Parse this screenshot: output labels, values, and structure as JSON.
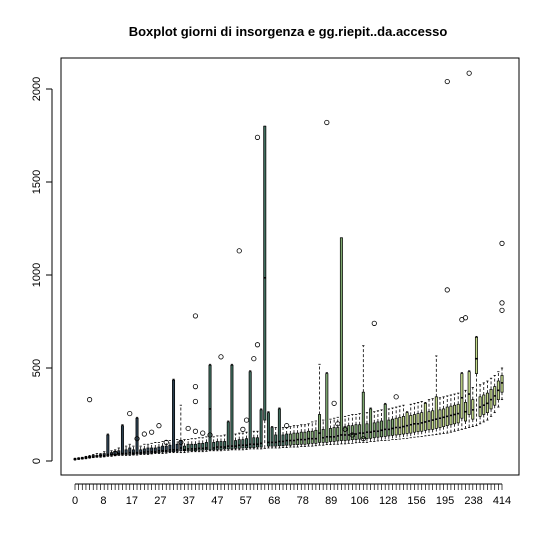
{
  "chart_data": {
    "type": "box",
    "title": "Boxplot giorni di insorgenza e gg.riepit..da.accesso",
    "xlabel": "",
    "ylabel": "",
    "ylim": [
      0,
      2100
    ],
    "y_ticks": [
      0,
      500,
      1000,
      1500,
      2000
    ],
    "x_tick_labels": [
      "0",
      "8",
      "17",
      "27",
      "37",
      "47",
      "57",
      "68",
      "78",
      "89",
      "106",
      "128",
      "156",
      "195",
      "238",
      "414"
    ],
    "grid": false,
    "box_colors": [
      "#2a3f4f",
      "#3e6b5c",
      "#7ea870",
      "#c2d98a"
    ],
    "boxes": [
      {
        "pos": 1,
        "low": 5,
        "q1": 8,
        "med": 10,
        "q3": 12,
        "high": 15
      },
      {
        "pos": 2,
        "low": 8,
        "q1": 10,
        "med": 12,
        "q3": 15,
        "high": 18
      },
      {
        "pos": 3,
        "low": 10,
        "q1": 12,
        "med": 15,
        "q3": 18,
        "high": 20
      },
      {
        "pos": 4,
        "low": 12,
        "q1": 15,
        "med": 18,
        "q3": 22,
        "high": 25
      },
      {
        "pos": 5,
        "low": 15,
        "q1": 18,
        "med": 20,
        "q3": 25,
        "high": 30,
        "out": [
          330
        ]
      },
      {
        "pos": 6,
        "low": 18,
        "q1": 20,
        "med": 22,
        "q3": 30,
        "high": 35
      },
      {
        "pos": 7,
        "low": 20,
        "q1": 22,
        "med": 25,
        "q3": 30,
        "high": 40
      },
      {
        "pos": 8,
        "low": 20,
        "q1": 25,
        "med": 28,
        "q3": 35,
        "high": 40
      },
      {
        "pos": 9,
        "low": 22,
        "q1": 25,
        "med": 30,
        "q3": 40,
        "high": 50
      },
      {
        "pos": 10,
        "low": 25,
        "q1": 28,
        "med": 35,
        "q3": 140,
        "high": 145
      },
      {
        "pos": 11,
        "low": 25,
        "q1": 30,
        "med": 35,
        "q3": 45,
        "high": 55
      },
      {
        "pos": 12,
        "low": 28,
        "q1": 30,
        "med": 35,
        "q3": 50,
        "high": 60,
        "out": [
          42
        ]
      },
      {
        "pos": 13,
        "low": 30,
        "q1": 32,
        "med": 40,
        "q3": 55,
        "high": 70
      },
      {
        "pos": 14,
        "low": 30,
        "q1": 35,
        "med": 40,
        "q3": 190,
        "high": 195
      },
      {
        "pos": 15,
        "low": 30,
        "q1": 35,
        "med": 40,
        "q3": 60,
        "high": 80
      },
      {
        "pos": 16,
        "low": 30,
        "q1": 35,
        "med": 45,
        "q3": 70,
        "high": 90,
        "out": [
          255
        ]
      },
      {
        "pos": 17,
        "low": 32,
        "q1": 35,
        "med": 42,
        "q3": 60,
        "high": 80
      },
      {
        "pos": 18,
        "low": 32,
        "q1": 38,
        "med": 45,
        "q3": 230,
        "high": 235,
        "out": [
          120
        ]
      },
      {
        "pos": 19,
        "low": 35,
        "q1": 38,
        "med": 45,
        "q3": 60,
        "high": 80
      },
      {
        "pos": 20,
        "low": 35,
        "q1": 40,
        "med": 48,
        "q3": 65,
        "high": 90,
        "out": [
          145
        ]
      },
      {
        "pos": 21,
        "low": 35,
        "q1": 40,
        "med": 50,
        "q3": 70,
        "high": 90
      },
      {
        "pos": 22,
        "low": 38,
        "q1": 42,
        "med": 50,
        "q3": 70,
        "high": 95,
        "out": [
          155
        ]
      },
      {
        "pos": 23,
        "low": 40,
        "q1": 45,
        "med": 50,
        "q3": 70,
        "high": 100
      },
      {
        "pos": 24,
        "low": 40,
        "q1": 45,
        "med": 55,
        "q3": 75,
        "high": 100,
        "out": [
          190
        ]
      },
      {
        "pos": 25,
        "low": 40,
        "q1": 48,
        "med": 55,
        "q3": 80,
        "high": 105
      },
      {
        "pos": 26,
        "low": 42,
        "q1": 48,
        "med": 55,
        "q3": 80,
        "high": 110,
        "out": [
          100
        ]
      },
      {
        "pos": 27,
        "low": 45,
        "q1": 50,
        "med": 60,
        "q3": 85,
        "high": 110
      },
      {
        "pos": 28,
        "low": 45,
        "q1": 50,
        "med": 60,
        "q3": 435,
        "high": 440
      },
      {
        "pos": 29,
        "low": 45,
        "q1": 52,
        "med": 60,
        "q3": 90,
        "high": 115
      },
      {
        "pos": 30,
        "low": 45,
        "q1": 55,
        "med": 70,
        "q3": 110,
        "high": 300,
        "out": [
          100
        ]
      },
      {
        "pos": 31,
        "low": 45,
        "q1": 55,
        "med": 60,
        "q3": 80,
        "high": 115
      },
      {
        "pos": 32,
        "low": 48,
        "q1": 55,
        "med": 65,
        "q3": 90,
        "high": 115,
        "out": [
          175
        ]
      },
      {
        "pos": 33,
        "low": 50,
        "q1": 55,
        "med": 65,
        "q3": 90,
        "high": 120
      },
      {
        "pos": 34,
        "low": 50,
        "q1": 55,
        "med": 65,
        "q3": 90,
        "high": 120,
        "out": [
          780,
          400,
          320,
          160
        ]
      },
      {
        "pos": 35,
        "low": 50,
        "q1": 58,
        "med": 68,
        "q3": 95,
        "high": 125
      },
      {
        "pos": 36,
        "low": 50,
        "q1": 58,
        "med": 68,
        "q3": 95,
        "high": 125,
        "out": [
          150
        ]
      },
      {
        "pos": 37,
        "low": 52,
        "q1": 60,
        "med": 70,
        "q3": 100,
        "high": 130
      },
      {
        "pos": 38,
        "low": 55,
        "q1": 60,
        "med": 280,
        "q3": 515,
        "high": 520,
        "out": [
          140
        ]
      },
      {
        "pos": 39,
        "low": 55,
        "q1": 60,
        "med": 70,
        "q3": 100,
        "high": 130
      },
      {
        "pos": 40,
        "low": 55,
        "q1": 62,
        "med": 75,
        "q3": 105,
        "high": 135
      },
      {
        "pos": 41,
        "low": 55,
        "q1": 62,
        "med": 75,
        "q3": 105,
        "high": 135,
        "out": [
          560
        ]
      },
      {
        "pos": 42,
        "low": 58,
        "q1": 65,
        "med": 75,
        "q3": 105,
        "high": 140
      },
      {
        "pos": 43,
        "low": 58,
        "q1": 65,
        "med": 80,
        "q3": 210,
        "high": 215
      },
      {
        "pos": 44,
        "low": 60,
        "q1": 65,
        "med": 80,
        "q3": 515,
        "high": 520
      },
      {
        "pos": 45,
        "low": 60,
        "q1": 68,
        "med": 80,
        "q3": 110,
        "high": 145
      },
      {
        "pos": 46,
        "low": 60,
        "q1": 68,
        "med": 85,
        "q3": 115,
        "high": 150,
        "out": [
          1130
        ]
      },
      {
        "pos": 47,
        "low": 60,
        "q1": 70,
        "med": 85,
        "q3": 115,
        "high": 150,
        "out": [
          170
        ]
      },
      {
        "pos": 48,
        "low": 62,
        "q1": 70,
        "med": 85,
        "q3": 120,
        "high": 155,
        "out": [
          220
        ]
      },
      {
        "pos": 49,
        "low": 65,
        "q1": 72,
        "med": 90,
        "q3": 480,
        "high": 485
      },
      {
        "pos": 50,
        "low": 65,
        "q1": 72,
        "med": 90,
        "q3": 125,
        "high": 160,
        "out": [
          550
        ]
      },
      {
        "pos": 51,
        "low": 65,
        "q1": 75,
        "med": 90,
        "q3": 125,
        "high": 160,
        "out": [
          625,
          1740
        ]
      },
      {
        "pos": 52,
        "low": 65,
        "q1": 75,
        "med": 95,
        "q3": 275,
        "high": 280
      },
      {
        "pos": 53,
        "low": 68,
        "q1": 220,
        "med": 985,
        "q3": 1800,
        "high": 1800
      },
      {
        "pos": 54,
        "low": 70,
        "q1": 80,
        "med": 100,
        "q3": 260,
        "high": 265
      },
      {
        "pos": 55,
        "low": 70,
        "q1": 80,
        "med": 100,
        "q3": 180,
        "high": 185
      },
      {
        "pos": 56,
        "low": 70,
        "q1": 80,
        "med": 100,
        "q3": 140,
        "high": 180
      },
      {
        "pos": 57,
        "low": 70,
        "q1": 82,
        "med": 105,
        "q3": 280,
        "high": 285
      },
      {
        "pos": 58,
        "low": 72,
        "q1": 82,
        "med": 105,
        "q3": 140,
        "high": 180
      },
      {
        "pos": 59,
        "low": 72,
        "q1": 85,
        "med": 110,
        "q3": 145,
        "high": 180,
        "out": [
          190
        ]
      },
      {
        "pos": 60,
        "low": 75,
        "q1": 85,
        "med": 110,
        "q3": 145,
        "high": 185
      },
      {
        "pos": 61,
        "low": 75,
        "q1": 88,
        "med": 110,
        "q3": 150,
        "high": 190
      },
      {
        "pos": 62,
        "low": 75,
        "q1": 88,
        "med": 115,
        "q3": 150,
        "high": 190
      },
      {
        "pos": 63,
        "low": 78,
        "q1": 90,
        "med": 115,
        "q3": 155,
        "high": 195
      },
      {
        "pos": 64,
        "low": 78,
        "q1": 90,
        "med": 115,
        "q3": 155,
        "high": 195
      },
      {
        "pos": 65,
        "low": 80,
        "q1": 92,
        "med": 120,
        "q3": 160,
        "high": 200
      },
      {
        "pos": 66,
        "low": 80,
        "q1": 95,
        "med": 120,
        "q3": 160,
        "high": 210
      },
      {
        "pos": 67,
        "low": 82,
        "q1": 95,
        "med": 120,
        "q3": 165,
        "high": 215
      },
      {
        "pos": 68,
        "low": 85,
        "q1": 100,
        "med": 150,
        "q3": 250,
        "high": 520
      },
      {
        "pos": 69,
        "low": 85,
        "q1": 100,
        "med": 125,
        "q3": 170,
        "high": 220
      },
      {
        "pos": 70,
        "low": 88,
        "q1": 100,
        "med": 130,
        "q3": 470,
        "high": 475,
        "out": [
          1820
        ]
      },
      {
        "pos": 71,
        "low": 88,
        "q1": 105,
        "med": 130,
        "q3": 175,
        "high": 225
      },
      {
        "pos": 72,
        "low": 90,
        "q1": 105,
        "med": 130,
        "q3": 180,
        "high": 230,
        "out": [
          310
        ]
      },
      {
        "pos": 73,
        "low": 90,
        "q1": 108,
        "med": 135,
        "q3": 180,
        "high": 235,
        "out": [
          200
        ]
      },
      {
        "pos": 74,
        "low": 92,
        "q1": 110,
        "med": 140,
        "q3": 1200,
        "high": 1200
      },
      {
        "pos": 75,
        "low": 92,
        "q1": 110,
        "med": 140,
        "q3": 185,
        "high": 240,
        "out": [
          170
        ]
      },
      {
        "pos": 76,
        "low": 95,
        "q1": 112,
        "med": 140,
        "q3": 190,
        "high": 245
      },
      {
        "pos": 77,
        "low": 95,
        "q1": 115,
        "med": 145,
        "q3": 190,
        "high": 250,
        "out": [
          140
        ]
      },
      {
        "pos": 78,
        "low": 98,
        "q1": 115,
        "med": 145,
        "q3": 195,
        "high": 250
      },
      {
        "pos": 79,
        "low": 100,
        "q1": 118,
        "med": 150,
        "q3": 195,
        "high": 255
      },
      {
        "pos": 80,
        "low": 100,
        "q1": 120,
        "med": 150,
        "q3": 370,
        "high": 620,
        "out": [
          120
        ]
      },
      {
        "pos": 81,
        "low": 100,
        "q1": 120,
        "med": 155,
        "q3": 200,
        "high": 260
      },
      {
        "pos": 82,
        "low": 105,
        "q1": 122,
        "med": 155,
        "q3": 280,
        "high": 285
      },
      {
        "pos": 83,
        "low": 105,
        "q1": 125,
        "med": 160,
        "q3": 205,
        "high": 265,
        "out": [
          740
        ]
      },
      {
        "pos": 84,
        "low": 108,
        "q1": 128,
        "med": 160,
        "q3": 210,
        "high": 270
      },
      {
        "pos": 85,
        "low": 110,
        "q1": 130,
        "med": 165,
        "q3": 215,
        "high": 275
      },
      {
        "pos": 86,
        "low": 110,
        "q1": 132,
        "med": 170,
        "q3": 305,
        "high": 310
      },
      {
        "pos": 87,
        "low": 112,
        "q1": 135,
        "med": 170,
        "q3": 220,
        "high": 280
      },
      {
        "pos": 88,
        "low": 115,
        "q1": 138,
        "med": 175,
        "q3": 225,
        "high": 285
      },
      {
        "pos": 89,
        "low": 115,
        "q1": 140,
        "med": 180,
        "q3": 230,
        "high": 290,
        "out": [
          345
        ]
      },
      {
        "pos": 90,
        "low": 118,
        "q1": 142,
        "med": 180,
        "q3": 235,
        "high": 295
      },
      {
        "pos": 91,
        "low": 120,
        "q1": 145,
        "med": 185,
        "q3": 240,
        "high": 300
      },
      {
        "pos": 92,
        "low": 122,
        "q1": 148,
        "med": 190,
        "q3": 260,
        "high": 265
      },
      {
        "pos": 93,
        "low": 125,
        "q1": 150,
        "med": 195,
        "q3": 245,
        "high": 305
      },
      {
        "pos": 94,
        "low": 128,
        "q1": 155,
        "med": 200,
        "q3": 250,
        "high": 310
      },
      {
        "pos": 95,
        "low": 130,
        "q1": 158,
        "med": 200,
        "q3": 255,
        "high": 315
      },
      {
        "pos": 96,
        "low": 132,
        "q1": 160,
        "med": 205,
        "q3": 260,
        "high": 320
      },
      {
        "pos": 97,
        "low": 135,
        "q1": 165,
        "med": 210,
        "q3": 310,
        "high": 315
      },
      {
        "pos": 98,
        "low": 138,
        "q1": 168,
        "med": 215,
        "q3": 265,
        "high": 330
      },
      {
        "pos": 99,
        "low": 140,
        "q1": 170,
        "med": 220,
        "q3": 270,
        "high": 335
      },
      {
        "pos": 100,
        "low": 142,
        "q1": 175,
        "med": 225,
        "q3": 345,
        "high": 565
      },
      {
        "pos": 101,
        "low": 145,
        "q1": 180,
        "med": 230,
        "q3": 275,
        "high": 340
      },
      {
        "pos": 102,
        "low": 148,
        "q1": 185,
        "med": 235,
        "q3": 280,
        "high": 345
      },
      {
        "pos": 103,
        "low": 150,
        "q1": 190,
        "med": 240,
        "q3": 290,
        "high": 350,
        "out": [
          2040,
          920
        ]
      },
      {
        "pos": 104,
        "low": 155,
        "q1": 195,
        "med": 245,
        "q3": 295,
        "high": 355
      },
      {
        "pos": 105,
        "low": 160,
        "q1": 200,
        "med": 250,
        "q3": 300,
        "high": 360
      },
      {
        "pos": 106,
        "low": 165,
        "q1": 205,
        "med": 255,
        "q3": 305,
        "high": 365
      },
      {
        "pos": 107,
        "low": 170,
        "q1": 230,
        "med": 340,
        "q3": 470,
        "high": 475,
        "out": [
          760
        ]
      },
      {
        "pos": 108,
        "low": 175,
        "q1": 215,
        "med": 265,
        "q3": 315,
        "high": 380,
        "out": [
          770
        ]
      },
      {
        "pos": 109,
        "low": 180,
        "q1": 250,
        "med": 360,
        "q3": 480,
        "high": 485,
        "out": [
          2085
        ]
      },
      {
        "pos": 110,
        "low": 185,
        "q1": 225,
        "med": 275,
        "q3": 330,
        "high": 395
      },
      {
        "pos": 111,
        "low": 190,
        "q1": 470,
        "med": 550,
        "q3": 665,
        "high": 670
      },
      {
        "pos": 112,
        "low": 200,
        "q1": 240,
        "med": 290,
        "q3": 345,
        "high": 410
      },
      {
        "pos": 113,
        "low": 210,
        "q1": 250,
        "med": 300,
        "q3": 355,
        "high": 420
      },
      {
        "pos": 114,
        "low": 220,
        "q1": 260,
        "med": 310,
        "q3": 365,
        "high": 430
      },
      {
        "pos": 115,
        "low": 240,
        "q1": 280,
        "med": 330,
        "q3": 385,
        "high": 445
      },
      {
        "pos": 116,
        "low": 260,
        "q1": 300,
        "med": 350,
        "q3": 400,
        "high": 460
      },
      {
        "pos": 117,
        "low": 290,
        "q1": 330,
        "med": 380,
        "q3": 430,
        "high": 480
      },
      {
        "pos": 118,
        "low": 330,
        "q1": 370,
        "med": 420,
        "q3": 460,
        "high": 500,
        "out": [
          1170,
          850,
          810
        ]
      }
    ]
  }
}
